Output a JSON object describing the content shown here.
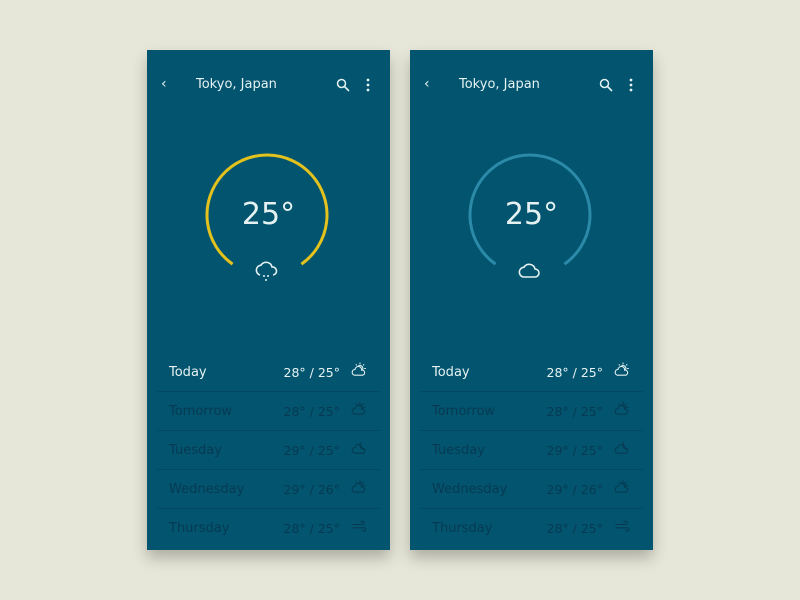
{
  "colors": {
    "background": "#e7e7d9",
    "panel": "#02546f",
    "active_ring": "#e3c21d",
    "inactive_ring": "#2c8aa9",
    "text_light": "#e6f2f2",
    "text_dim": "#073a52"
  },
  "screens": [
    {
      "title": "Tokyo, Japan",
      "temperature": "25°",
      "ring": "active",
      "weather_icon": "cloud-rain-icon",
      "forecast": [
        {
          "day": "Today",
          "range": "28° / 25°",
          "icon": "partly-sunny-icon"
        },
        {
          "day": "Tomorrow",
          "range": "28° / 25°",
          "icon": "partly-sunny-icon"
        },
        {
          "day": "Tuesday",
          "range": "29° / 25°",
          "icon": "cloudy-moon-icon"
        },
        {
          "day": "Wednesday",
          "range": "29° / 26°",
          "icon": "partly-sunny-icon"
        },
        {
          "day": "Thursday",
          "range": "28° / 25°",
          "icon": "wind-icon"
        }
      ]
    },
    {
      "title": "Tokyo, Japan",
      "temperature": "25°",
      "ring": "inactive",
      "weather_icon": "cloud-icon",
      "forecast": [
        {
          "day": "Today",
          "range": "28° / 25°",
          "icon": "partly-sunny-icon"
        },
        {
          "day": "Tomorrow",
          "range": "28° / 25°",
          "icon": "partly-sunny-icon"
        },
        {
          "day": "Tuesday",
          "range": "29° / 25°",
          "icon": "cloudy-moon-icon"
        },
        {
          "day": "Wednesday",
          "range": "29° / 26°",
          "icon": "partly-sunny-icon"
        },
        {
          "day": "Thursday",
          "range": "28° / 25°",
          "icon": "wind-icon"
        }
      ]
    }
  ]
}
